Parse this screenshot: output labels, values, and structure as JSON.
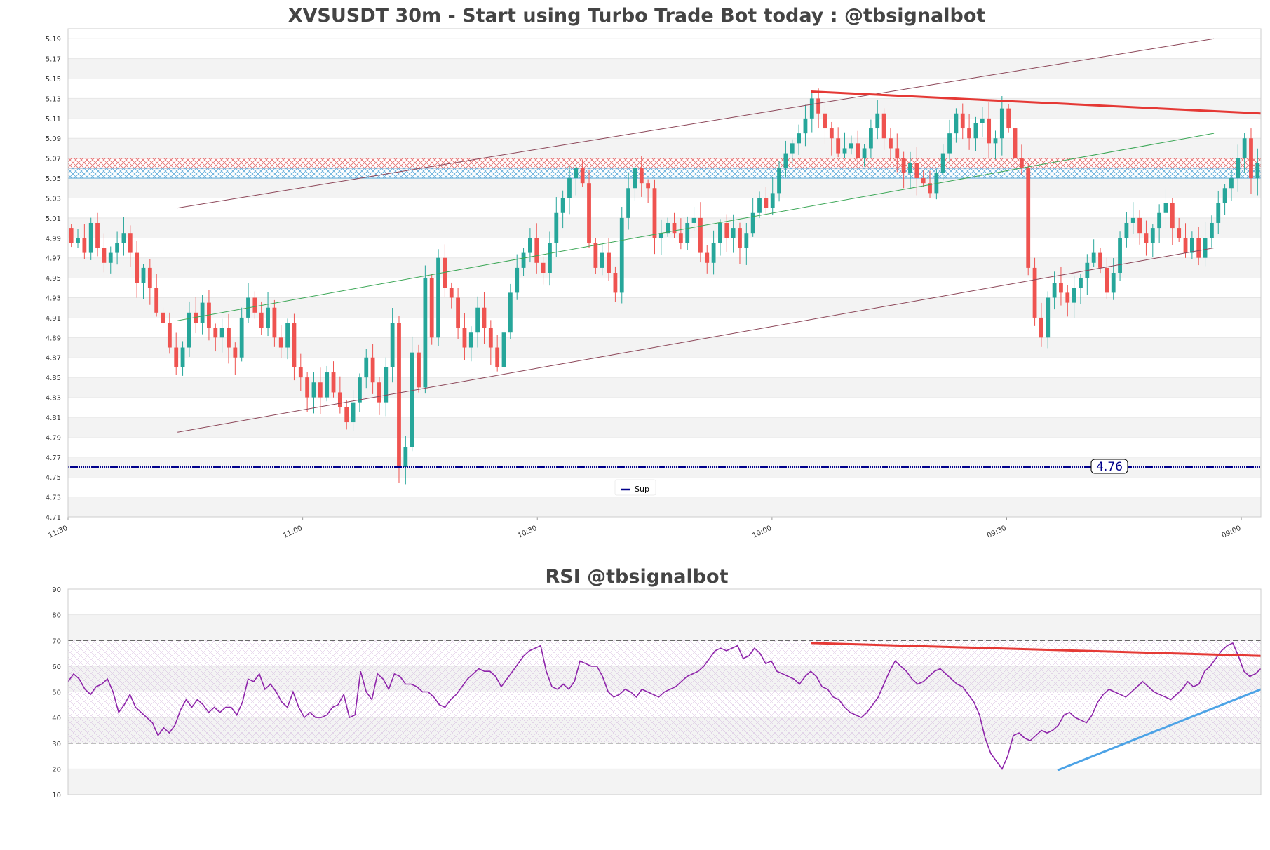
{
  "chart_data": [
    {
      "type": "candlestick",
      "title": "XVSUSDT 30m - Start using Turbo Trade Bot today : @tbsignalbot",
      "ylim": [
        4.71,
        5.2
      ],
      "y_ticks": [
        "4.71",
        "4.73",
        "4.75",
        "4.77",
        "4.79",
        "4.81",
        "4.83",
        "4.85",
        "4.87",
        "4.89",
        "4.91",
        "4.93",
        "4.95",
        "4.97",
        "4.99",
        "5.01",
        "5.03",
        "5.05",
        "5.07",
        "5.09",
        "5.11",
        "5.13",
        "5.15",
        "5.17",
        "5.19"
      ],
      "x_ticks": [
        {
          "label": "11:30",
          "x": 0
        },
        {
          "label": "11:00",
          "x": 60
        },
        {
          "label": "10:30",
          "x": 120
        },
        {
          "label": "10:00",
          "x": 180
        },
        {
          "label": "09:30",
          "x": 240
        },
        {
          "label": "09:00",
          "x": 300
        }
      ],
      "x_range": [
        0,
        305
      ],
      "candle_colors": {
        "up": "#26a69a",
        "down": "#ef5350"
      },
      "candle_seed": [
        [
          5.0,
          4.985
        ],
        [
          4.985,
          4.99
        ],
        [
          4.99,
          4.975
        ],
        [
          4.975,
          5.005
        ],
        [
          5.005,
          4.98
        ],
        [
          4.98,
          4.965
        ],
        [
          4.965,
          4.975
        ],
        [
          4.975,
          4.985
        ],
        [
          4.985,
          4.995
        ],
        [
          4.995,
          4.975
        ],
        [
          4.975,
          4.945
        ],
        [
          4.945,
          4.96
        ],
        [
          4.96,
          4.94
        ],
        [
          4.94,
          4.915
        ],
        [
          4.915,
          4.905
        ],
        [
          4.905,
          4.88
        ],
        [
          4.88,
          4.86
        ],
        [
          4.86,
          4.88
        ],
        [
          4.88,
          4.915
        ],
        [
          4.915,
          4.905
        ],
        [
          4.905,
          4.925
        ],
        [
          4.925,
          4.9
        ],
        [
          4.9,
          4.89
        ],
        [
          4.89,
          4.9
        ],
        [
          4.9,
          4.88
        ],
        [
          4.88,
          4.87
        ],
        [
          4.87,
          4.91
        ],
        [
          4.91,
          4.93
        ],
        [
          4.93,
          4.915
        ],
        [
          4.915,
          4.9
        ],
        [
          4.9,
          4.92
        ],
        [
          4.92,
          4.89
        ],
        [
          4.89,
          4.88
        ],
        [
          4.88,
          4.905
        ],
        [
          4.905,
          4.86
        ],
        [
          4.86,
          4.85
        ],
        [
          4.85,
          4.83
        ],
        [
          4.83,
          4.845
        ],
        [
          4.845,
          4.83
        ],
        [
          4.83,
          4.855
        ],
        [
          4.855,
          4.835
        ],
        [
          4.835,
          4.82
        ],
        [
          4.82,
          4.805
        ],
        [
          4.805,
          4.825
        ],
        [
          4.825,
          4.85
        ],
        [
          4.85,
          4.87
        ],
        [
          4.87,
          4.845
        ],
        [
          4.845,
          4.825
        ],
        [
          4.825,
          4.86
        ],
        [
          4.86,
          4.905
        ],
        [
          4.905,
          4.76
        ],
        [
          4.76,
          4.78
        ],
        [
          4.78,
          4.875
        ],
        [
          4.875,
          4.84
        ],
        [
          4.84,
          4.95
        ],
        [
          4.95,
          4.89
        ],
        [
          4.89,
          4.97
        ],
        [
          4.97,
          4.94
        ],
        [
          4.94,
          4.93
        ],
        [
          4.93,
          4.9
        ],
        [
          4.9,
          4.88
        ],
        [
          4.88,
          4.895
        ],
        [
          4.895,
          4.92
        ],
        [
          4.92,
          4.9
        ],
        [
          4.9,
          4.88
        ],
        [
          4.88,
          4.86
        ],
        [
          4.86,
          4.895
        ],
        [
          4.895,
          4.935
        ],
        [
          4.935,
          4.96
        ],
        [
          4.96,
          4.975
        ],
        [
          4.975,
          4.99
        ],
        [
          4.99,
          4.965
        ],
        [
          4.965,
          4.955
        ],
        [
          4.955,
          4.985
        ],
        [
          4.985,
          5.015
        ],
        [
          5.015,
          5.03
        ],
        [
          5.03,
          5.05
        ],
        [
          5.05,
          5.06
        ],
        [
          5.06,
          5.045
        ],
        [
          5.045,
          4.985
        ],
        [
          4.985,
          4.96
        ],
        [
          4.96,
          4.975
        ],
        [
          4.975,
          4.955
        ],
        [
          4.955,
          4.935
        ],
        [
          4.935,
          5.01
        ],
        [
          5.01,
          5.04
        ],
        [
          5.04,
          5.06
        ],
        [
          5.06,
          5.045
        ],
        [
          5.045,
          5.04
        ],
        [
          5.04,
          4.99
        ],
        [
          4.99,
          4.995
        ],
        [
          4.995,
          5.005
        ],
        [
          5.005,
          4.995
        ],
        [
          4.995,
          4.985
        ],
        [
          4.985,
          5.005
        ],
        [
          5.005,
          5.01
        ],
        [
          5.01,
          4.975
        ],
        [
          4.975,
          4.965
        ],
        [
          4.965,
          4.985
        ],
        [
          4.985,
          5.005
        ],
        [
          5.005,
          4.99
        ],
        [
          4.99,
          5.0
        ],
        [
          5.0,
          4.98
        ],
        [
          4.98,
          4.995
        ],
        [
          4.995,
          5.015
        ],
        [
          5.015,
          5.03
        ],
        [
          5.03,
          5.02
        ],
        [
          5.02,
          5.035
        ],
        [
          5.035,
          5.06
        ],
        [
          5.06,
          5.075
        ],
        [
          5.075,
          5.085
        ],
        [
          5.085,
          5.095
        ],
        [
          5.095,
          5.11
        ],
        [
          5.11,
          5.13
        ],
        [
          5.13,
          5.115
        ],
        [
          5.115,
          5.1
        ],
        [
          5.1,
          5.09
        ],
        [
          5.09,
          5.075
        ],
        [
          5.075,
          5.08
        ],
        [
          5.08,
          5.085
        ],
        [
          5.085,
          5.07
        ],
        [
          5.07,
          5.08
        ],
        [
          5.08,
          5.1
        ],
        [
          5.1,
          5.115
        ],
        [
          5.115,
          5.09
        ],
        [
          5.09,
          5.08
        ],
        [
          5.08,
          5.07
        ],
        [
          5.07,
          5.055
        ],
        [
          5.055,
          5.065
        ],
        [
          5.065,
          5.05
        ],
        [
          5.05,
          5.045
        ],
        [
          5.045,
          5.035
        ],
        [
          5.035,
          5.055
        ],
        [
          5.055,
          5.075
        ],
        [
          5.075,
          5.095
        ],
        [
          5.095,
          5.115
        ],
        [
          5.115,
          5.1
        ],
        [
          5.1,
          5.09
        ],
        [
          5.09,
          5.105
        ],
        [
          5.105,
          5.11
        ],
        [
          5.11,
          5.085
        ],
        [
          5.085,
          5.09
        ],
        [
          5.09,
          5.12
        ],
        [
          5.12,
          5.1
        ],
        [
          5.1,
          5.07
        ],
        [
          5.07,
          5.06
        ],
        [
          5.06,
          4.96
        ],
        [
          4.96,
          4.91
        ],
        [
          4.91,
          4.89
        ],
        [
          4.89,
          4.93
        ],
        [
          4.93,
          4.945
        ],
        [
          4.945,
          4.935
        ],
        [
          4.935,
          4.925
        ],
        [
          4.925,
          4.94
        ],
        [
          4.94,
          4.95
        ],
        [
          4.95,
          4.965
        ],
        [
          4.965,
          4.975
        ],
        [
          4.975,
          4.96
        ],
        [
          4.96,
          4.935
        ],
        [
          4.935,
          4.955
        ],
        [
          4.955,
          4.99
        ],
        [
          4.99,
          5.005
        ],
        [
          5.005,
          5.01
        ],
        [
          5.01,
          4.995
        ],
        [
          4.995,
          4.985
        ],
        [
          4.985,
          5.0
        ],
        [
          5.0,
          5.015
        ],
        [
          5.015,
          5.025
        ],
        [
          5.025,
          5.0
        ],
        [
          5.0,
          4.99
        ],
        [
          4.99,
          4.975
        ],
        [
          4.975,
          4.99
        ],
        [
          4.99,
          4.97
        ],
        [
          4.97,
          4.99
        ],
        [
          4.99,
          5.005
        ],
        [
          5.005,
          5.025
        ],
        [
          5.025,
          5.04
        ],
        [
          5.04,
          5.05
        ],
        [
          5.05,
          5.07
        ],
        [
          5.07,
          5.09
        ],
        [
          5.09,
          5.05
        ],
        [
          5.05,
          5.065
        ]
      ],
      "support_line": {
        "value": 4.76,
        "label": "4.76",
        "legend": "Sup",
        "color": "#00008b"
      },
      "zones": [
        {
          "from": 5.06,
          "to": 5.07,
          "color": "#e05a5a"
        },
        {
          "from": 5.05,
          "to": 5.06,
          "color": "#4da3d6"
        }
      ],
      "trendlines": [
        {
          "color": "#8b4557",
          "points": [
            [
              28,
              5.02
            ],
            [
              293,
              5.19
            ]
          ]
        },
        {
          "color": "#8b4557",
          "points": [
            [
              28,
              4.795
            ],
            [
              293,
              4.98
            ]
          ]
        },
        {
          "color": "#3aa655",
          "points": [
            [
              28,
              4.907
            ],
            [
              293,
              5.095
            ]
          ]
        },
        {
          "color": "#e53935",
          "width": 3,
          "points": [
            [
              190,
              5.137
            ],
            [
              305,
              5.115
            ]
          ]
        }
      ]
    },
    {
      "type": "line",
      "title": "RSI @tbsignalbot",
      "ylim": [
        10,
        90
      ],
      "y_ticks": [
        "10",
        "20",
        "30",
        "40",
        "50",
        "60",
        "70",
        "80",
        "90"
      ],
      "x_range": [
        0,
        305
      ],
      "series": [
        {
          "color": "#8e24aa",
          "values": [
            54,
            57,
            55,
            51,
            49,
            52,
            53,
            55,
            50,
            42,
            45,
            49,
            44,
            42,
            40,
            38,
            33,
            36,
            34,
            37,
            43,
            47,
            44,
            47,
            45,
            42,
            44,
            42,
            44,
            44,
            41,
            46,
            55,
            54,
            57,
            51,
            53,
            50,
            46,
            44,
            50,
            44,
            40,
            42,
            40,
            40,
            41,
            44,
            45,
            49,
            40,
            41,
            58,
            50,
            47,
            57,
            55,
            51,
            57,
            56,
            53,
            53,
            52,
            50,
            50,
            48,
            45,
            44,
            47,
            49,
            52,
            55,
            57,
            59,
            58,
            58,
            56,
            52,
            55,
            58,
            61,
            64,
            66,
            67,
            68,
            58,
            52,
            51,
            53,
            51,
            54,
            62,
            61,
            60,
            60,
            56,
            50,
            48,
            49,
            51,
            50,
            48,
            51,
            50,
            49,
            48,
            50,
            51,
            52,
            54,
            56,
            57,
            58,
            60,
            63,
            66,
            67,
            66,
            67,
            68,
            63,
            64,
            67,
            65,
            61,
            62,
            58,
            57,
            56,
            55,
            53,
            56,
            58,
            56,
            52,
            51,
            48,
            47,
            44,
            42,
            41,
            40,
            42,
            45,
            48,
            53,
            58,
            62,
            60,
            58,
            55,
            53,
            54,
            56,
            58,
            59,
            57,
            55,
            53,
            52,
            49,
            46,
            41,
            32,
            26,
            23,
            20,
            25,
            33,
            34,
            32,
            31,
            33,
            35,
            34,
            35,
            37,
            41,
            42,
            40,
            39,
            38,
            41,
            46,
            49,
            51,
            50,
            49,
            48,
            50,
            52,
            54,
            52,
            50,
            49,
            48,
            47,
            49,
            51,
            54,
            52,
            53,
            58,
            60,
            63,
            66,
            68,
            69,
            64,
            58,
            56,
            57,
            59
          ]
        }
      ],
      "levels": [
        30,
        70
      ],
      "band": [
        30,
        70
      ],
      "trendlines": [
        {
          "color": "#e53935",
          "width": 3,
          "points": [
            [
              190,
              69
            ],
            [
              305,
              64
            ]
          ]
        },
        {
          "color": "#4da3e6",
          "width": 3,
          "points": [
            [
              253,
              19.5
            ],
            [
              305,
              51
            ]
          ]
        }
      ]
    }
  ]
}
